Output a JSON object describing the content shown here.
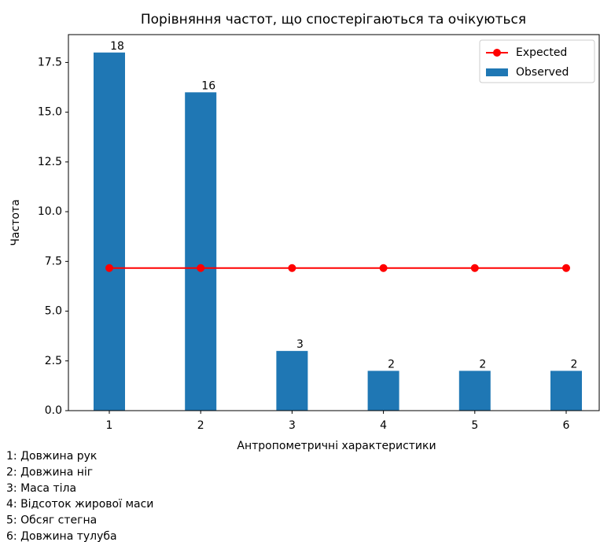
{
  "chart_data": {
    "type": "bar",
    "title": "Порівняння частот, що спостерігаються та очікуються",
    "xlabel": "Антропометричні характеристики",
    "ylabel": "Частота",
    "categories": [
      "1",
      "2",
      "3",
      "4",
      "5",
      "6"
    ],
    "series": [
      {
        "name": "Expected",
        "type": "line",
        "color": "#ff0000",
        "values": [
          7.1667,
          7.1667,
          7.1667,
          7.1667,
          7.1667,
          7.1667
        ]
      },
      {
        "name": "Observed",
        "type": "bar",
        "color": "#1f77b4",
        "values": [
          18,
          16,
          3,
          2,
          2,
          2
        ]
      }
    ],
    "ylim": [
      0,
      18.9
    ],
    "yticks": [
      {
        "value": 0,
        "label": "0.0"
      },
      {
        "value": 2.5,
        "label": "2.5"
      },
      {
        "value": 5,
        "label": "5.0"
      },
      {
        "value": 7.5,
        "label": "7.5"
      },
      {
        "value": 10,
        "label": "10.0"
      },
      {
        "value": 12.5,
        "label": "12.5"
      },
      {
        "value": 15,
        "label": "15.0"
      },
      {
        "value": 17.5,
        "label": "17.5"
      }
    ],
    "legend": "upper right",
    "notes": [
      "1: Довжина рук",
      "2: Довжина ніг",
      "3: Маса тіла",
      "4: Відсоток жирової маси",
      "5: Обсяг стегна",
      "6: Довжина тулуба"
    ]
  }
}
